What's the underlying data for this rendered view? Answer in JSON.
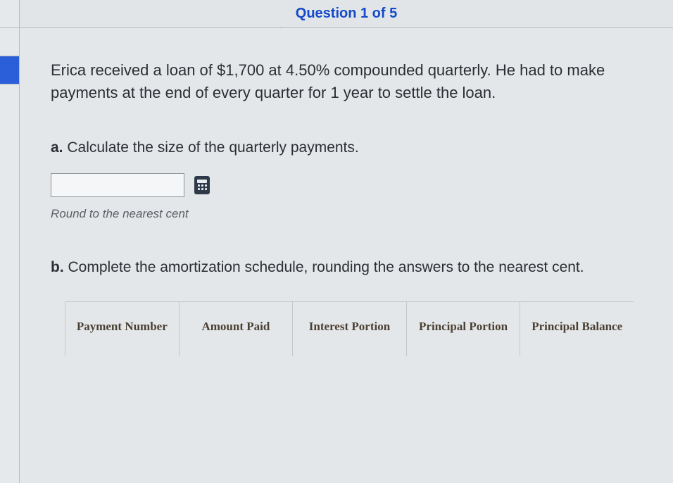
{
  "header": {
    "title": "Question 1 of 5",
    "title_color": "#1449c9"
  },
  "sidebar": {
    "segments": [
      {
        "active": false
      },
      {
        "active": false
      },
      {
        "active": true
      }
    ]
  },
  "prompt": "Erica received a loan of $1,700 at 4.50% compounded quarterly. He had to make payments at the end of every quarter for 1 year to settle the loan.",
  "part_a": {
    "label_prefix": "a.",
    "label_text": " Calculate the size of the quarterly payments.",
    "input_value": "",
    "input_placeholder": "",
    "hint": "Round to the nearest cent"
  },
  "part_b": {
    "label_prefix": "b.",
    "label_text": " Complete the amortization schedule, rounding the answers to the nearest cent."
  },
  "amortization_table": {
    "type": "table",
    "columns": [
      "Payment Number",
      "Amount Paid",
      "Interest Portion",
      "Principal Portion",
      "Principal Balance"
    ],
    "header_color": "#4a4033",
    "border_color": "#c3c8cc",
    "header_font": "serif",
    "header_fontsize": 17
  },
  "colors": {
    "background": "#e4e7e9",
    "text": "#2b2f33",
    "accent": "#2b5fd9"
  }
}
